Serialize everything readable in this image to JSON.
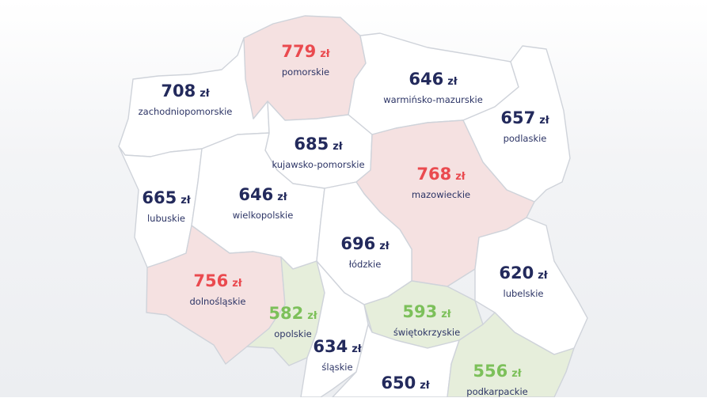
{
  "currency": "zł",
  "colors": {
    "normal_fill": "#ffffff",
    "high_fill": "#f5e1e1",
    "low_fill": "#e6eedb",
    "high_text": "#ea4a4f",
    "low_text": "#7cc05a",
    "normal_text": "#232a5c",
    "border": "#cfd3da"
  },
  "regions": {
    "pomorskie": {
      "value": "779",
      "name": "pomorskie",
      "level": "high"
    },
    "zachodniopomorskie": {
      "value": "708",
      "name": "zachodniopomorskie",
      "level": "normal"
    },
    "warminsko_mazurskie": {
      "value": "646",
      "name": "warmińsko-mazurskie",
      "level": "normal"
    },
    "podlaskie": {
      "value": "657",
      "name": "podlaskie",
      "level": "normal"
    },
    "kujawsko_pomorskie": {
      "value": "685",
      "name": "kujawsko-pomorskie",
      "level": "normal"
    },
    "mazowieckie": {
      "value": "768",
      "name": "mazowieckie",
      "level": "high"
    },
    "lubuskie": {
      "value": "665",
      "name": "lubuskie",
      "level": "normal"
    },
    "wielkopolskie": {
      "value": "646",
      "name": "wielkopolskie",
      "level": "normal"
    },
    "lodzkie": {
      "value": "696",
      "name": "łódzkie",
      "level": "normal"
    },
    "lubelskie": {
      "value": "620",
      "name": "lubelskie",
      "level": "normal"
    },
    "dolnoslaskie": {
      "value": "756",
      "name": "dolnośląskie",
      "level": "high"
    },
    "opolskie": {
      "value": "582",
      "name": "opolskie",
      "level": "low"
    },
    "swietokrzyskie": {
      "value": "593",
      "name": "świętokrzyskie",
      "level": "low"
    },
    "slaskie": {
      "value": "634",
      "name": "śląskie",
      "level": "normal"
    },
    "podkarpackie": {
      "value": "556",
      "name": "podkarpackie",
      "level": "low"
    },
    "malopolskie": {
      "value": "650",
      "name": "",
      "level": "normal"
    }
  }
}
